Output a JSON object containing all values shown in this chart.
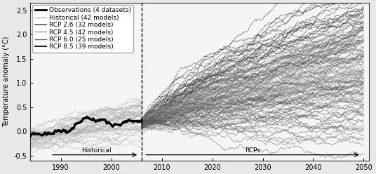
{
  "ylabel": "Temperature anomaly (°C)",
  "xlim": [
    1984,
    2051
  ],
  "ylim": [
    -0.6,
    2.65
  ],
  "xticks": [
    1990,
    2000,
    2010,
    2020,
    2030,
    2040,
    2050
  ],
  "yticks": [
    -0.5,
    0.0,
    0.5,
    1.0,
    1.5,
    2.0,
    2.5
  ],
  "historical_start": 1984,
  "historical_end": 2006,
  "rcp_start": 2006,
  "rcp_end": 2050,
  "split_year": 2006,
  "n_historical_models": 42,
  "n_rcp26": 32,
  "n_rcp45": 42,
  "n_rcp60": 25,
  "n_rcp85": 39,
  "obs_color": "#000000",
  "historical_color": "#b0b0b0",
  "rcp26_color": "#555555",
  "rcp45_color": "#999999",
  "rcp60_color": "#666666",
  "rcp85_color": "#222222",
  "obs_linewidth": 2.2,
  "model_linewidth": 0.4,
  "legend_fontsize": 6.5,
  "background_color": "#f0f0f0",
  "seed": 12
}
